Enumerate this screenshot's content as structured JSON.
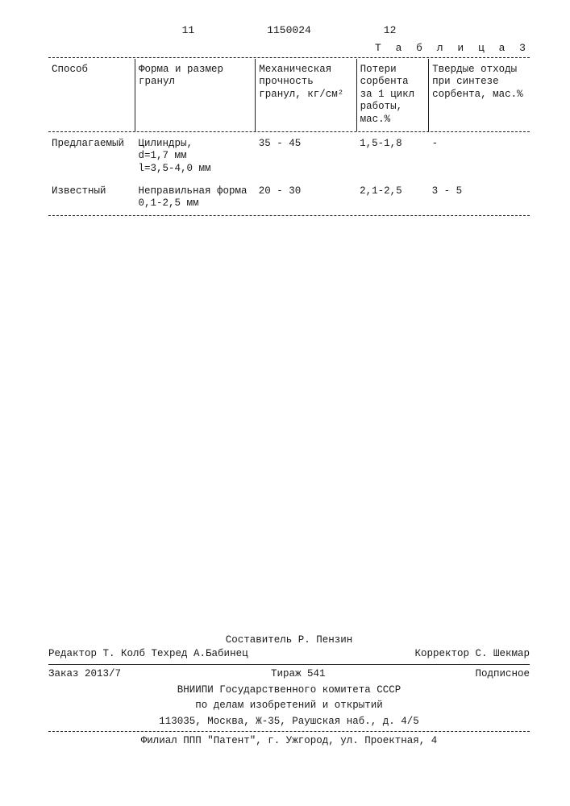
{
  "header": {
    "leftnum": "11",
    "docnum": "1150024",
    "rightnum": "12"
  },
  "table": {
    "caption": "Т а б л и ц а 3",
    "columns": [
      "Способ",
      "Форма и размер гранул",
      "Механическая прочность гранул, кг/см²",
      "Потери сорбента за 1 цикл работы, мас.%",
      "Твердые отходы при синтезе сорбента, мас.%"
    ],
    "rows": [
      {
        "method": "Предлагаемый",
        "shape": "Цилиндры,\nd=1,7 мм\nl=3,5-4,0 мм",
        "strength": "35 - 45",
        "loss": "1,5-1,8",
        "waste": "-"
      },
      {
        "method": "Известный",
        "shape": "Неправильная форма\n0,1-2,5 мм",
        "strength": "20 - 30",
        "loss": "2,1-2,5",
        "waste": "3 - 5"
      }
    ]
  },
  "footer": {
    "composer": "Составитель Р. Пензин",
    "editor": "Редактор Т. Колб",
    "tech": "Техред А.Бабинец",
    "corrector": "Корректор С. Шекмар",
    "order": "Заказ 2013/7",
    "tirazh": "Тираж 541",
    "subscription": "Подписное",
    "org1": "ВНИИПИ Государственного комитета СССР",
    "org2": "по делам изобретений и открытий",
    "addr1": "113035, Москва, Ж-35, Раушская наб., д. 4/5",
    "branch": "Филиал ППП \"Патент\", г. Ужгород, ул. Проектная, 4"
  }
}
